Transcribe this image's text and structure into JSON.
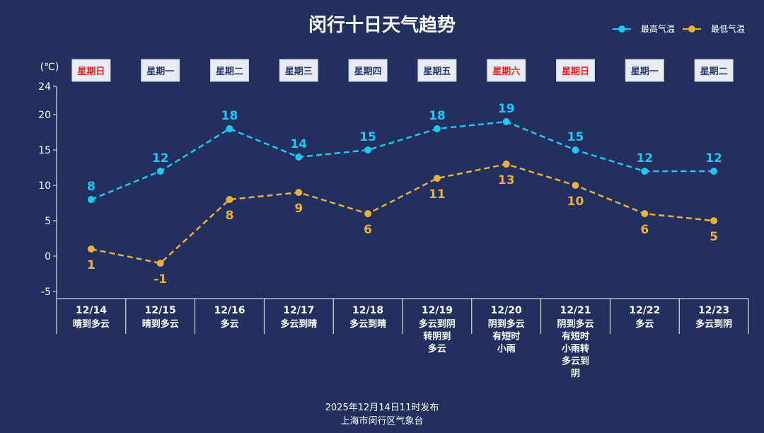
{
  "chart_data": {
    "type": "line",
    "title": "闵行十日天气趋势",
    "unit_label": "(℃)",
    "ylim": [
      -6,
      24
    ],
    "y_ticks": [
      24,
      20,
      15,
      10,
      5,
      0,
      -5
    ],
    "legend": [
      "最高气温",
      "最低气温"
    ],
    "categories": [
      "12/14",
      "12/15",
      "12/16",
      "12/17",
      "12/18",
      "12/19",
      "12/20",
      "12/21",
      "12/22",
      "12/23"
    ],
    "weekdays": [
      "星期日",
      "星期一",
      "星期二",
      "星期三",
      "星期四",
      "星期五",
      "星期六",
      "星期日",
      "星期一",
      "星期二"
    ],
    "weekday_highlight": [
      true,
      false,
      false,
      false,
      false,
      false,
      true,
      true,
      false,
      false
    ],
    "weather": [
      [
        "晴到多云"
      ],
      [
        "晴到多云"
      ],
      [
        "多云"
      ],
      [
        "多云到晴"
      ],
      [
        "多云到晴"
      ],
      [
        "多云到阴",
        "转阴到",
        "多云"
      ],
      [
        "阴到多云",
        "有短时",
        "小雨"
      ],
      [
        "阴到多云",
        "有短时",
        "小雨转",
        "多云到",
        "阴"
      ],
      [
        "多云"
      ],
      [
        "多云到阴"
      ]
    ],
    "series": [
      {
        "name": "最高气温",
        "values": [
          8,
          12,
          18,
          14,
          15,
          18,
          19,
          15,
          12,
          12
        ],
        "color": "#1ec8f5"
      },
      {
        "name": "最低气温",
        "values": [
          1,
          -1,
          8,
          9,
          6,
          11,
          13,
          10,
          6,
          5
        ],
        "color": "#e8b23a"
      }
    ],
    "weekday_colors": {
      "normal": "#2a3a6e",
      "highlight": "#ff1a1a",
      "box": "#e9ecf3"
    }
  },
  "footer": {
    "line1": "2025年12月14日11时发布",
    "line2": "上海市闵行区气象台"
  }
}
